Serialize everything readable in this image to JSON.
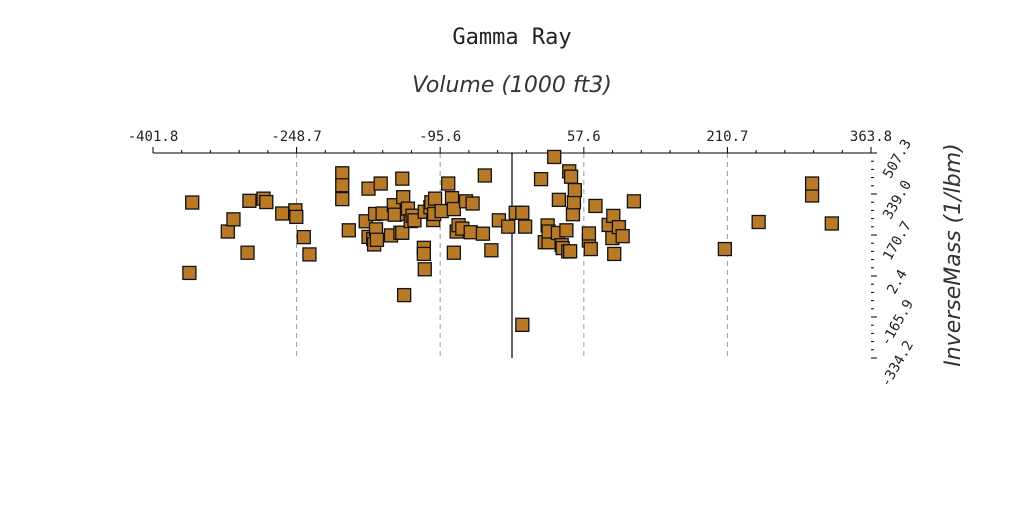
{
  "chart_data": {
    "type": "scatter",
    "title": "Gamma Ray",
    "xlabel": "Volume (1000 ft3)",
    "ylabel": "InverseMass (1/lbm)",
    "xlim": [
      -401.8,
      363.8
    ],
    "ylim": [
      -334.2,
      507.3
    ],
    "x_ticks": [
      "-401.8",
      "-248.7",
      "-95.6",
      "57.6",
      "210.7",
      "363.8"
    ],
    "y_ticks": [
      "507.3",
      "339.0",
      "170.7",
      "2.4",
      "-165.9",
      "-334.2"
    ],
    "x_tick_values": [
      -401.8,
      -248.7,
      -95.6,
      57.6,
      210.7,
      363.8
    ],
    "y_tick_values": [
      507.3,
      339.0,
      170.7,
      2.4,
      -165.9,
      -334.2
    ],
    "x_axis_position": "top",
    "y_axis_position": "right",
    "grid": "vertical dashed at x ticks",
    "marker": "square",
    "marker_color": "#b87a26",
    "series": [
      {
        "name": "",
        "points": [
          [
            -363,
            15
          ],
          [
            -360,
            304
          ],
          [
            -322,
            185
          ],
          [
            -316,
            235
          ],
          [
            -301,
            98
          ],
          [
            -299,
            311
          ],
          [
            -284,
            320
          ],
          [
            -281,
            306
          ],
          [
            -264,
            259
          ],
          [
            -250,
            272
          ],
          [
            -249,
            245
          ],
          [
            -241,
            162
          ],
          [
            -235,
            91
          ],
          [
            -200,
            424
          ],
          [
            -200,
            375
          ],
          [
            -200,
            318
          ],
          [
            -193,
            190
          ],
          [
            -175,
            227
          ],
          [
            -172,
            361
          ],
          [
            -172,
            163
          ],
          [
            -167,
            154
          ],
          [
            -166,
            132
          ],
          [
            -165,
            257
          ],
          [
            -164,
            194
          ],
          [
            -163,
            151
          ],
          [
            -159,
            382
          ],
          [
            -157,
            259
          ],
          [
            -148,
            169
          ],
          [
            -145,
            293
          ],
          [
            -144,
            254
          ],
          [
            -138,
            180
          ],
          [
            -136,
            402
          ],
          [
            -136,
            180
          ],
          [
            -135,
            326
          ],
          [
            -134,
            -76
          ],
          [
            -131,
            257
          ],
          [
            -130,
            279
          ],
          [
            -127,
            228
          ],
          [
            -125,
            250
          ],
          [
            -123,
            231
          ],
          [
            -113,
            118
          ],
          [
            -113,
            93
          ],
          [
            -112,
            30
          ],
          [
            -112,
            266
          ],
          [
            -106,
            285
          ],
          [
            -105,
            305
          ],
          [
            -103,
            232
          ],
          [
            -102,
            257
          ],
          [
            -101,
            320
          ],
          [
            -94,
            269
          ],
          [
            -87,
            382
          ],
          [
            -83,
            322
          ],
          [
            -81,
            277
          ],
          [
            -81,
            98
          ],
          [
            -78,
            185
          ],
          [
            -76,
            211
          ],
          [
            -72,
            197
          ],
          [
            -68,
            309
          ],
          [
            -63,
            182
          ],
          [
            -61,
            300
          ],
          [
            -50,
            176
          ],
          [
            -48,
            415
          ],
          [
            -41,
            108
          ],
          [
            -33,
            231
          ],
          [
            -23,
            205
          ],
          [
            -15,
            262
          ],
          [
            -5,
            205
          ],
          [
            -8,
            -198
          ],
          [
            -8,
            262
          ],
          [
            12,
            400
          ],
          [
            16,
            141
          ],
          [
            19,
            210
          ],
          [
            20,
            141
          ],
          [
            20,
            185
          ],
          [
            26,
            491
          ],
          [
            30,
            179
          ],
          [
            31,
            315
          ],
          [
            34,
            129
          ],
          [
            35,
            117
          ],
          [
            39,
            190
          ],
          [
            41,
            103
          ],
          [
            42,
            432
          ],
          [
            43,
            104
          ],
          [
            44,
            410
          ],
          [
            46,
            256
          ],
          [
            47,
            305
          ],
          [
            48,
            355
          ],
          [
            63,
            148
          ],
          [
            63,
            177
          ],
          [
            65,
            113
          ],
          [
            70,
            290
          ],
          [
            84,
            212
          ],
          [
            88,
            158
          ],
          [
            89,
            249
          ],
          [
            90,
            93
          ],
          [
            95,
            203
          ],
          [
            99,
            166
          ],
          [
            111,
            309
          ],
          [
            208,
            113
          ],
          [
            244,
            224
          ],
          [
            301,
            333
          ],
          [
            301,
            382
          ],
          [
            322,
            218
          ]
        ]
      }
    ]
  }
}
